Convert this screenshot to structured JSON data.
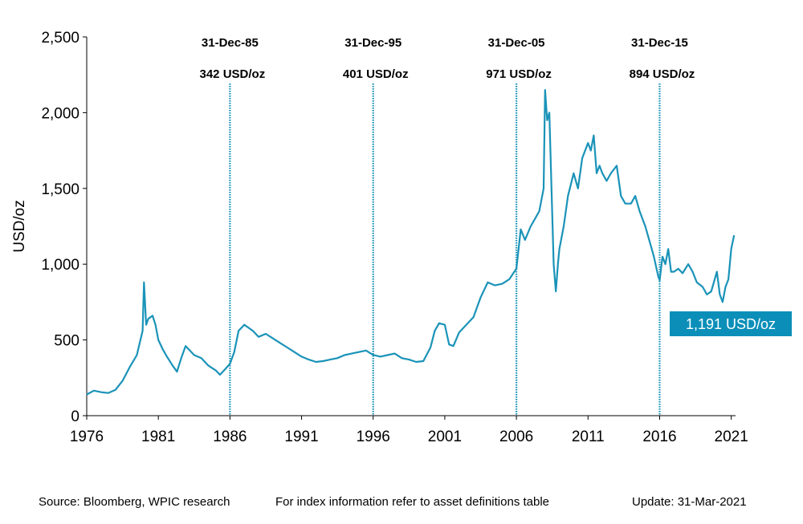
{
  "chart_data": {
    "type": "line",
    "title": "",
    "xlabel": "",
    "ylabel": "USD/oz",
    "xlim": [
      1976,
      2021.3
    ],
    "ylim": [
      0,
      2500
    ],
    "x_ticks": [
      "1976",
      "1981",
      "1986",
      "1991",
      "1996",
      "2001",
      "2006",
      "2011",
      "2016",
      "2021"
    ],
    "y_ticks": [
      "0",
      "500",
      "1,000",
      "1,500",
      "2,000",
      "2,500"
    ],
    "line_color": "#1a93b8",
    "callout": {
      "label": "1,191 USD/oz",
      "value": 1191,
      "x": 2021.2,
      "color": "#0b8fb9"
    },
    "markers": [
      {
        "x": 1986.0,
        "date": "31-Dec-85",
        "value": "342 USD/oz"
      },
      {
        "x": 1996.0,
        "date": "31-Dec-95",
        "value": "401 USD/oz"
      },
      {
        "x": 2006.0,
        "date": "31-Dec-05",
        "value": "971 USD/oz"
      },
      {
        "x": 2016.0,
        "date": "31-Dec-15",
        "value": "894 USD/oz"
      }
    ],
    "series": [
      {
        "x": [
          1976.0,
          1976.5,
          1977.0,
          1977.5,
          1978.0,
          1978.5,
          1979.0,
          1979.5,
          1979.9,
          1980.0,
          1980.15,
          1980.3,
          1980.6,
          1980.8,
          1981.0,
          1981.3,
          1981.6,
          1982.0,
          1982.3,
          1982.6,
          1982.9,
          1983.2,
          1983.5,
          1984.0,
          1984.5,
          1985.0,
          1985.3,
          1985.6,
          1986.0,
          1986.3,
          1986.6,
          1987.0,
          1987.3,
          1987.6,
          1988.0,
          1988.5,
          1989.0,
          1989.5,
          1990.0,
          1990.5,
          1991.0,
          1991.5,
          1992.0,
          1992.5,
          1993.0,
          1993.5,
          1994.0,
          1994.5,
          1995.0,
          1995.5,
          1996.0,
          1996.5,
          1997.0,
          1997.5,
          1998.0,
          1998.5,
          1999.0,
          1999.5,
          2000.0,
          2000.3,
          2000.6,
          2001.0,
          2001.3,
          2001.6,
          2002.0,
          2002.5,
          2003.0,
          2003.5,
          2004.0,
          2004.5,
          2005.0,
          2005.5,
          2006.0,
          2006.3,
          2006.6,
          2007.0,
          2007.3,
          2007.6,
          2007.9,
          2008.0,
          2008.15,
          2008.3,
          2008.45,
          2008.6,
          2008.75,
          2008.9,
          2009.0,
          2009.3,
          2009.6,
          2010.0,
          2010.3,
          2010.6,
          2011.0,
          2011.2,
          2011.4,
          2011.6,
          2011.8,
          2012.0,
          2012.3,
          2012.6,
          2013.0,
          2013.3,
          2013.6,
          2014.0,
          2014.3,
          2014.6,
          2015.0,
          2015.3,
          2015.6,
          2015.9,
          2016.0,
          2016.2,
          2016.4,
          2016.6,
          2016.8,
          2017.0,
          2017.3,
          2017.6,
          2018.0,
          2018.3,
          2018.6,
          2019.0,
          2019.3,
          2019.6,
          2020.0,
          2020.2,
          2020.4,
          2020.6,
          2020.8,
          2021.0,
          2021.2
        ],
        "values": [
          140,
          165,
          155,
          150,
          170,
          230,
          320,
          400,
          560,
          880,
          600,
          640,
          660,
          600,
          500,
          440,
          390,
          330,
          290,
          380,
          460,
          430,
          400,
          380,
          330,
          300,
          270,
          300,
          342,
          420,
          560,
          600,
          580,
          560,
          520,
          540,
          510,
          480,
          450,
          420,
          390,
          370,
          355,
          360,
          370,
          380,
          400,
          410,
          420,
          430,
          401,
          390,
          400,
          410,
          380,
          370,
          355,
          360,
          450,
          560,
          610,
          600,
          470,
          460,
          550,
          600,
          650,
          780,
          880,
          860,
          870,
          900,
          971,
          1230,
          1160,
          1250,
          1300,
          1350,
          1500,
          2150,
          1950,
          2000,
          1500,
          1000,
          820,
          1000,
          1100,
          1250,
          1450,
          1600,
          1500,
          1700,
          1800,
          1750,
          1850,
          1600,
          1650,
          1600,
          1550,
          1600,
          1650,
          1450,
          1400,
          1400,
          1450,
          1350,
          1250,
          1150,
          1050,
          920,
          894,
          1050,
          1000,
          1100,
          950,
          950,
          970,
          940,
          1000,
          950,
          880,
          850,
          800,
          820,
          950,
          800,
          750,
          850,
          900,
          1100,
          1191
        ]
      }
    ]
  },
  "footer": {
    "source": "Source: Bloomberg, WPIC research",
    "index_note": "For index information refer to asset definitions table",
    "update": "Update: 31-Mar-2021"
  }
}
